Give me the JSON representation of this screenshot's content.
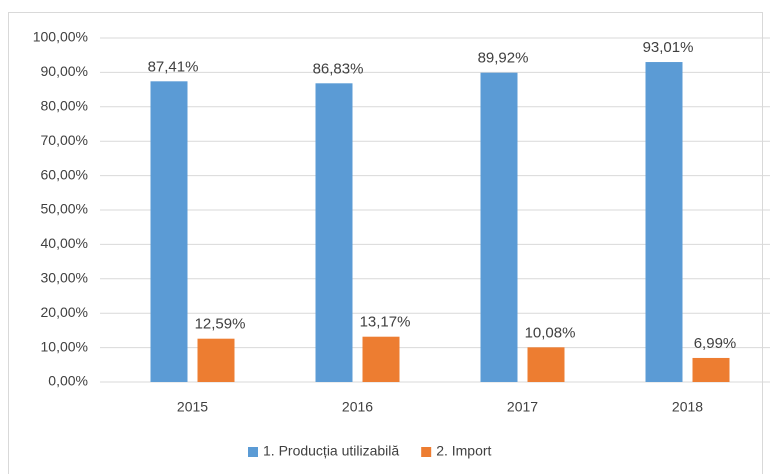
{
  "chart_data": {
    "type": "bar",
    "categories": [
      "2015",
      "2016",
      "2017",
      "2018"
    ],
    "series": [
      {
        "name": "1. Producția utilizabilă",
        "color": "#5b9bd5",
        "values": [
          87.41,
          86.83,
          89.92,
          93.01
        ],
        "value_labels": [
          "87,41%",
          "86,83%",
          "89,92%",
          "93,01%"
        ]
      },
      {
        "name": "2. Import",
        "color": "#ed7d31",
        "values": [
          12.59,
          13.17,
          10.08,
          6.99
        ],
        "value_labels": [
          "12,59%",
          "13,17%",
          "10,08%",
          "6,99%"
        ]
      }
    ],
    "ylim": [
      0,
      100
    ],
    "yticks": [
      {
        "value": 0,
        "label": "0,00%"
      },
      {
        "value": 10,
        "label": "10,00%"
      },
      {
        "value": 20,
        "label": "20,00%"
      },
      {
        "value": 30,
        "label": "30,00%"
      },
      {
        "value": 40,
        "label": "40,00%"
      },
      {
        "value": 50,
        "label": "50,00%"
      },
      {
        "value": 60,
        "label": "60,00%"
      },
      {
        "value": 70,
        "label": "70,00%"
      },
      {
        "value": 80,
        "label": "80,00%"
      },
      {
        "value": 90,
        "label": "90,00%"
      },
      {
        "value": 100,
        "label": "100,00%"
      }
    ],
    "grid": true,
    "legend": "bottom"
  }
}
